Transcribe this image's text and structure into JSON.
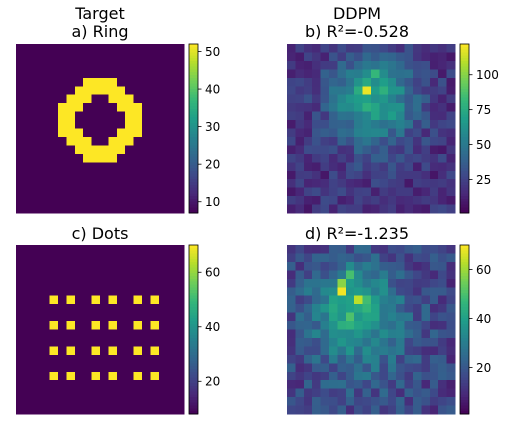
{
  "column_titles": [
    "Target",
    "DDPM"
  ],
  "colormap": {
    "name": "viridis",
    "stops": [
      "#440154",
      "#482878",
      "#3e4989",
      "#31688e",
      "#26828e",
      "#1f9e89",
      "#35b779",
      "#6ece58",
      "#b5de2b",
      "#fde725"
    ]
  },
  "chart_data": [
    {
      "type": "heatmap",
      "id": "a",
      "title": "a) Ring",
      "grid": [
        20,
        20
      ],
      "range": [
        7,
        52
      ],
      "colorbar_ticks": [
        10,
        20,
        30,
        40,
        50
      ],
      "pattern": "ring",
      "background_value": 7,
      "foreground_value": 52
    },
    {
      "type": "heatmap",
      "id": "b",
      "title": "b)  R²=-0.528",
      "grid": [
        20,
        20
      ],
      "range": [
        1,
        122
      ],
      "colorbar_ticks": [
        25,
        50,
        75,
        100
      ],
      "pattern": "noisy-ring"
    },
    {
      "type": "heatmap",
      "id": "c",
      "title": "c) Dots",
      "grid": [
        20,
        20
      ],
      "range": [
        8,
        70
      ],
      "colorbar_ticks": [
        20,
        40,
        60
      ],
      "pattern": "dots",
      "background_value": 8,
      "foreground_value": 70
    },
    {
      "type": "heatmap",
      "id": "d",
      "title": "d)  R²=-1.235",
      "grid": [
        20,
        20
      ],
      "range": [
        1,
        70
      ],
      "colorbar_ticks": [
        20,
        40,
        60
      ],
      "pattern": "noisy-dots"
    }
  ]
}
